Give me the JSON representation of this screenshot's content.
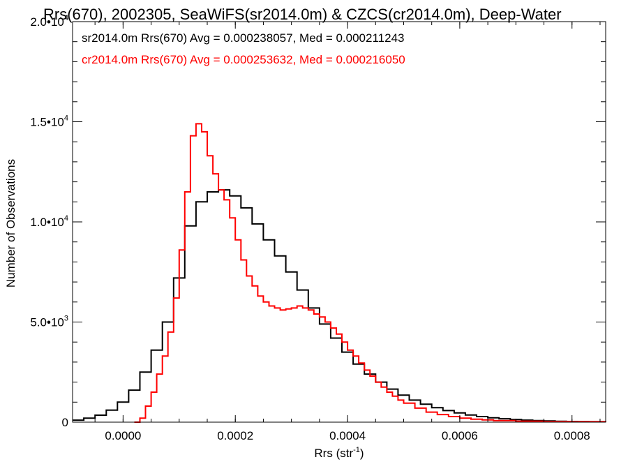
{
  "chart_data": {
    "type": "line",
    "title": "Rrs(670), 2002305, SeaWiFS(sr2014.0m) & CZCS(cr2014.0m), Deep-Water",
    "xlabel": "Rrs (str",
    "xlabel_sup": "-1",
    "xlabel_end": ")",
    "ylabel": "Number of Observations",
    "xlim": [
      -9e-05,
      0.00086
    ],
    "ylim": [
      0,
      20000
    ],
    "grid": false,
    "x_ticks": [
      {
        "value": 0.0,
        "label": "0.0000"
      },
      {
        "value": 0.0002,
        "label": "0.0002"
      },
      {
        "value": 0.0004,
        "label": "0.0004"
      },
      {
        "value": 0.0006,
        "label": "0.0006"
      },
      {
        "value": 0.0008,
        "label": "0.0008"
      }
    ],
    "y_ticks": [
      {
        "value": 0,
        "label": "0",
        "sup": ""
      },
      {
        "value": 5000,
        "label": "5.0•10",
        "sup": "3"
      },
      {
        "value": 10000,
        "label": "1.0•10",
        "sup": "4"
      },
      {
        "value": 15000,
        "label": "1.5•10",
        "sup": "4"
      },
      {
        "value": 20000,
        "label": "2.0•10",
        "sup": "4"
      }
    ],
    "series": [
      {
        "name": "sr2014.0m",
        "color": "#000000",
        "stats_label": "sr2014.0m Rrs(670) Avg = 0.000238057, Med = 0.000211243",
        "points": [
          [
            -9e-05,
            100
          ],
          [
            -7e-05,
            200
          ],
          [
            -5e-05,
            350
          ],
          [
            -3e-05,
            600
          ],
          [
            -1e-05,
            1000
          ],
          [
            1e-05,
            1600
          ],
          [
            3e-05,
            2500
          ],
          [
            5e-05,
            3600
          ],
          [
            7e-05,
            5000
          ],
          [
            9e-05,
            7200
          ],
          [
            0.00011,
            9800
          ],
          [
            0.00013,
            11000
          ],
          [
            0.00015,
            11500
          ],
          [
            0.00017,
            11600
          ],
          [
            0.00019,
            11300
          ],
          [
            0.00021,
            10700
          ],
          [
            0.00023,
            9900
          ],
          [
            0.00025,
            9100
          ],
          [
            0.00027,
            8300
          ],
          [
            0.00029,
            7500
          ],
          [
            0.00031,
            6600
          ],
          [
            0.00033,
            5700
          ],
          [
            0.00035,
            4900
          ],
          [
            0.00037,
            4200
          ],
          [
            0.00039,
            3500
          ],
          [
            0.00041,
            2900
          ],
          [
            0.00043,
            2400
          ],
          [
            0.00045,
            2000
          ],
          [
            0.00047,
            1650
          ],
          [
            0.00049,
            1350
          ],
          [
            0.00051,
            1100
          ],
          [
            0.00053,
            900
          ],
          [
            0.00055,
            720
          ],
          [
            0.00057,
            580
          ],
          [
            0.00059,
            460
          ],
          [
            0.00061,
            360
          ],
          [
            0.00063,
            280
          ],
          [
            0.00065,
            220
          ],
          [
            0.00067,
            170
          ],
          [
            0.00069,
            130
          ],
          [
            0.00071,
            100
          ],
          [
            0.00073,
            80
          ],
          [
            0.00075,
            60
          ],
          [
            0.00077,
            45
          ],
          [
            0.00079,
            35
          ],
          [
            0.00081,
            25
          ],
          [
            0.00083,
            20
          ],
          [
            0.00086,
            15
          ]
        ]
      },
      {
        "name": "cr2014.0m",
        "color": "#ff0000",
        "stats_label": "cr2014.0m Rrs(670) Avg = 0.000253632, Med = 0.000216050",
        "points": [
          [
            2e-05,
            0
          ],
          [
            3e-05,
            200
          ],
          [
            4e-05,
            800
          ],
          [
            5e-05,
            1500
          ],
          [
            6e-05,
            2400
          ],
          [
            7e-05,
            3300
          ],
          [
            8e-05,
            4500
          ],
          [
            9e-05,
            6200
          ],
          [
            0.0001,
            8600
          ],
          [
            0.00011,
            11500
          ],
          [
            0.00012,
            14300
          ],
          [
            0.00013,
            14900
          ],
          [
            0.00014,
            14500
          ],
          [
            0.00015,
            13300
          ],
          [
            0.00016,
            12400
          ],
          [
            0.00017,
            11600
          ],
          [
            0.00018,
            11100
          ],
          [
            0.00019,
            10200
          ],
          [
            0.0002,
            9100
          ],
          [
            0.00021,
            8100
          ],
          [
            0.00022,
            7300
          ],
          [
            0.00023,
            6800
          ],
          [
            0.00024,
            6300
          ],
          [
            0.00025,
            6000
          ],
          [
            0.00026,
            5800
          ],
          [
            0.00027,
            5700
          ],
          [
            0.00028,
            5600
          ],
          [
            0.00029,
            5650
          ],
          [
            0.0003,
            5700
          ],
          [
            0.00031,
            5800
          ],
          [
            0.00032,
            5700
          ],
          [
            0.00033,
            5600
          ],
          [
            0.00034,
            5400
          ],
          [
            0.00035,
            5250
          ],
          [
            0.00036,
            5000
          ],
          [
            0.00037,
            4700
          ],
          [
            0.00038,
            4400
          ],
          [
            0.00039,
            4000
          ],
          [
            0.0004,
            3600
          ],
          [
            0.00041,
            3300
          ],
          [
            0.00042,
            2950
          ],
          [
            0.00043,
            2600
          ],
          [
            0.00044,
            2300
          ],
          [
            0.00045,
            2000
          ],
          [
            0.00046,
            1750
          ],
          [
            0.00047,
            1500
          ],
          [
            0.00048,
            1300
          ],
          [
            0.00049,
            1100
          ],
          [
            0.0005,
            950
          ],
          [
            0.00052,
            700
          ],
          [
            0.00054,
            500
          ],
          [
            0.00056,
            380
          ],
          [
            0.00058,
            280
          ],
          [
            0.0006,
            200
          ],
          [
            0.00062,
            150
          ],
          [
            0.00064,
            110
          ],
          [
            0.00066,
            80
          ],
          [
            0.0007,
            50
          ],
          [
            0.00075,
            30
          ],
          [
            0.0008,
            20
          ],
          [
            0.00086,
            10
          ]
        ]
      }
    ]
  }
}
